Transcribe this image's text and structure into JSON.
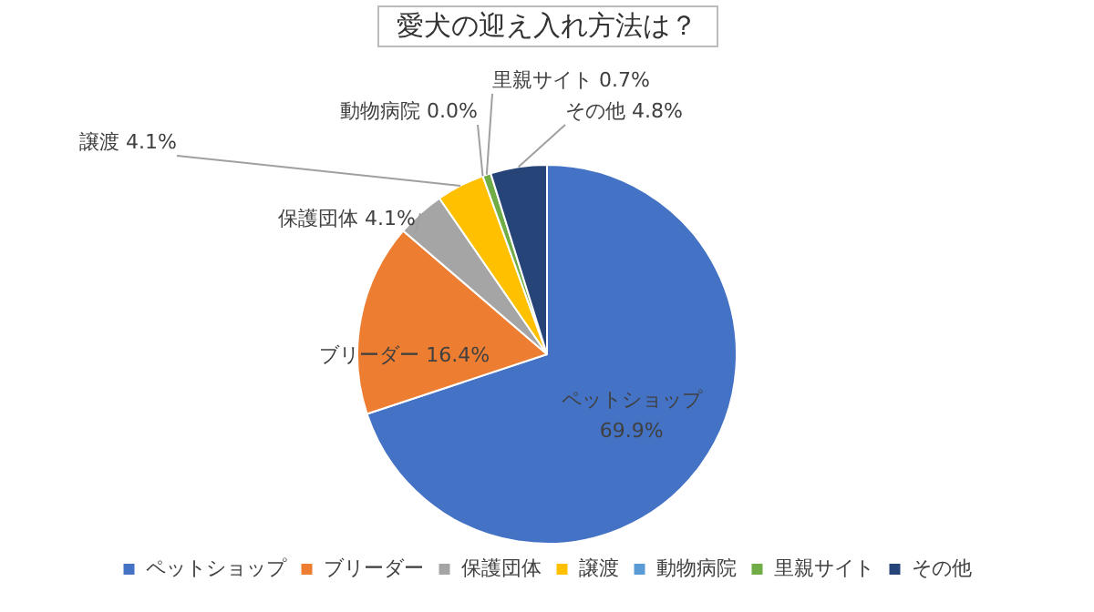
{
  "chart_data": {
    "type": "pie",
    "title": "愛犬の迎え入れ方法は？",
    "categories": [
      "ペットショップ",
      "ブリーダー",
      "保護団体",
      "譲渡",
      "動物病院",
      "里親サイト",
      "その他"
    ],
    "values": [
      69.9,
      16.4,
      4.1,
      4.1,
      0.0,
      0.7,
      4.8
    ],
    "value_labels": [
      "69.9%",
      "16.4%",
      "4.1%",
      "4.1%",
      "0.0%",
      "0.7%",
      "4.8%"
    ],
    "colors": [
      "#4472c4",
      "#ed7d31",
      "#a5a5a5",
      "#ffc000",
      "#5b9bd5",
      "#70ad47",
      "#264478"
    ],
    "legend": "bottom"
  }
}
